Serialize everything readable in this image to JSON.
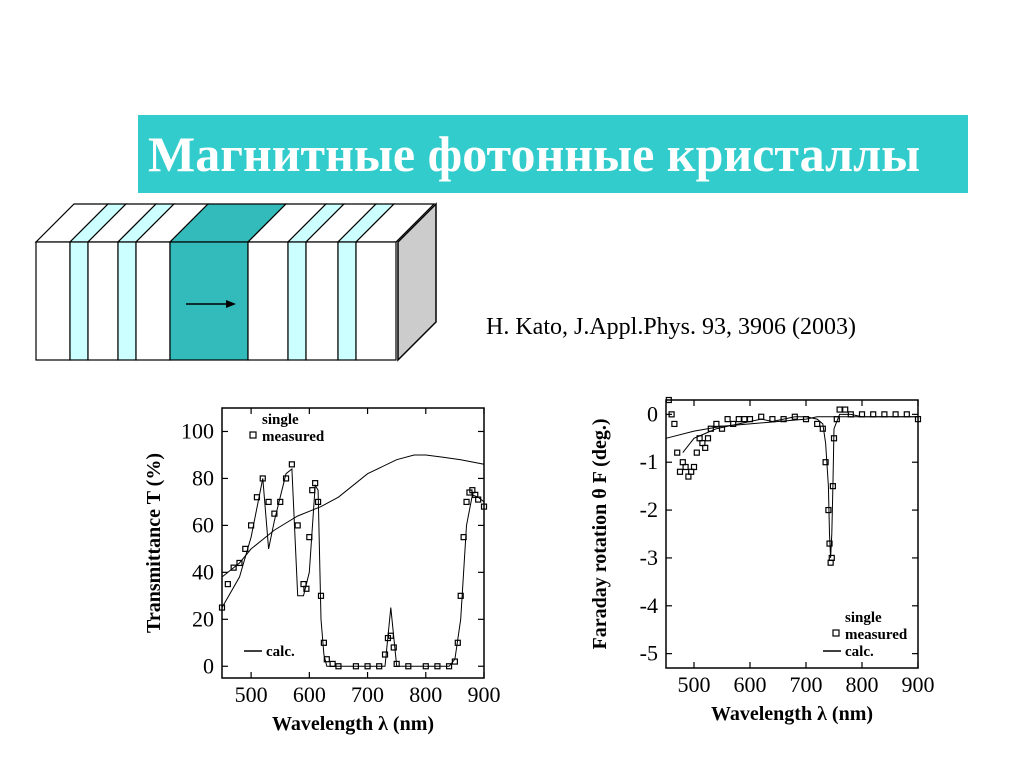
{
  "slide": {
    "title": "Магнитные фотонные кристаллы",
    "citation": "H. Kato, J.Appl.Phys. 93, 3906 (2003)"
  },
  "colors": {
    "title_bg": "#33cccc",
    "defect_layer": "#33bbbb",
    "thin_layer": "#ccffff",
    "side_face": "#cccccc"
  },
  "diagram": {
    "layers": [
      "white",
      "thin",
      "white",
      "thin",
      "white",
      "defect",
      "white",
      "thin",
      "white",
      "thin",
      "white"
    ],
    "arrow": "magnetization-arrow"
  },
  "chart_data": [
    {
      "type": "scatter",
      "xlabel": "Wavelength λ (nm)",
      "ylabel": "Transmittance T (%)",
      "xlim": [
        450,
        900
      ],
      "ylim": [
        -5,
        110
      ],
      "xticks": [
        500,
        600,
        700,
        800,
        900
      ],
      "yticks": [
        0,
        20,
        40,
        60,
        80,
        100
      ],
      "legend": {
        "top": [
          "single",
          "measured"
        ],
        "bottom": [
          "calc."
        ]
      },
      "series": [
        {
          "name": "single",
          "style": "thin-line",
          "x": [
            450,
            480,
            500,
            520,
            540,
            560,
            580,
            600,
            620,
            650,
            700,
            750,
            780,
            800,
            830,
            860,
            880,
            900
          ],
          "y": [
            38,
            44,
            50,
            54,
            58,
            61,
            64,
            66,
            68,
            72,
            82,
            88,
            90,
            90,
            89,
            88,
            87,
            86
          ]
        },
        {
          "name": "measured",
          "style": "squares",
          "x": [
            450,
            460,
            470,
            480,
            490,
            500,
            510,
            520,
            530,
            540,
            550,
            560,
            570,
            580,
            590,
            595,
            600,
            605,
            610,
            615,
            620,
            625,
            630,
            640,
            650,
            680,
            700,
            720,
            730,
            735,
            740,
            745,
            750,
            770,
            800,
            820,
            840,
            850,
            855,
            860,
            865,
            870,
            875,
            880,
            885,
            890,
            900
          ],
          "y": [
            25,
            35,
            42,
            44,
            50,
            60,
            72,
            80,
            70,
            65,
            70,
            80,
            86,
            60,
            35,
            33,
            55,
            75,
            78,
            70,
            30,
            10,
            3,
            1,
            0,
            0,
            0,
            0,
            5,
            12,
            13,
            8,
            1,
            0,
            0,
            0,
            0,
            2,
            10,
            30,
            55,
            70,
            74,
            75,
            73,
            71,
            68
          ]
        },
        {
          "name": "calc.",
          "style": "thin-line",
          "x": [
            450,
            480,
            500,
            520,
            530,
            540,
            560,
            570,
            580,
            590,
            600,
            610,
            615,
            620,
            625,
            630,
            650,
            700,
            730,
            740,
            750,
            800,
            840,
            850,
            860,
            870,
            880,
            890,
            900
          ],
          "y": [
            25,
            38,
            55,
            80,
            50,
            62,
            82,
            84,
            30,
            30,
            40,
            77,
            75,
            20,
            5,
            0,
            0,
            0,
            0,
            25,
            0,
            0,
            0,
            3,
            20,
            60,
            73,
            72,
            70
          ]
        }
      ]
    },
    {
      "type": "scatter",
      "xlabel": "Wavelength λ (nm)",
      "ylabel": "Faraday rotation θ F (deg.)",
      "xlim": [
        450,
        900
      ],
      "ylim": [
        -5.3,
        0.3
      ],
      "xticks": [
        500,
        600,
        700,
        800,
        900
      ],
      "yticks": [
        0,
        -1,
        -2,
        -3,
        -4,
        -5
      ],
      "legend": {
        "bottom": [
          "single",
          "measured",
          "calc."
        ]
      },
      "series": [
        {
          "name": "single",
          "style": "thin-line",
          "x": [
            450,
            500,
            550,
            600,
            650,
            700,
            720,
            740,
            750,
            760,
            800,
            850,
            900
          ],
          "y": [
            -0.5,
            -0.35,
            -0.25,
            -0.2,
            -0.15,
            -0.1,
            -0.05,
            -0.05,
            -0.05,
            -0.05,
            -0.05,
            -0.05,
            -0.05
          ]
        },
        {
          "name": "measured",
          "style": "squares",
          "x": [
            455,
            460,
            465,
            470,
            475,
            480,
            485,
            490,
            495,
            500,
            505,
            510,
            515,
            520,
            525,
            530,
            540,
            550,
            560,
            570,
            580,
            590,
            600,
            620,
            640,
            660,
            680,
            700,
            720,
            730,
            735,
            740,
            742,
            744,
            746,
            748,
            750,
            755,
            760,
            770,
            780,
            800,
            820,
            840,
            860,
            880,
            900
          ],
          "y": [
            0.3,
            0,
            -0.2,
            -0.8,
            -1.2,
            -1.0,
            -1.1,
            -1.3,
            -1.2,
            -1.1,
            -0.8,
            -0.5,
            -0.6,
            -0.7,
            -0.5,
            -0.3,
            -0.2,
            -0.3,
            -0.1,
            -0.2,
            -0.1,
            -0.1,
            -0.1,
            -0.05,
            -0.1,
            -0.1,
            -0.05,
            -0.1,
            -0.2,
            -0.3,
            -1.0,
            -2.0,
            -2.7,
            -3.1,
            -3.0,
            -1.5,
            -0.5,
            -0.1,
            0.1,
            0.1,
            0.0,
            0.0,
            0.0,
            0.0,
            0.0,
            0.0,
            -0.1
          ]
        },
        {
          "name": "calc.",
          "style": "thin-line",
          "x": [
            480,
            500,
            520,
            540,
            560,
            580,
            600,
            620,
            640,
            660,
            680,
            700,
            720,
            730,
            735,
            740,
            742,
            744,
            746,
            748,
            750,
            760,
            780,
            800,
            840,
            880,
            900
          ],
          "y": [
            -0.8,
            -0.5,
            -0.4,
            -0.3,
            -0.25,
            -0.2,
            -0.15,
            -0.1,
            -0.15,
            -0.1,
            -0.05,
            -0.05,
            -0.1,
            -0.2,
            -0.6,
            -1.5,
            -2.5,
            -3.0,
            -2.5,
            -1.5,
            -0.3,
            0.0,
            0.0,
            -0.05,
            -0.05,
            -0.05,
            -0.05
          ]
        }
      ]
    }
  ]
}
